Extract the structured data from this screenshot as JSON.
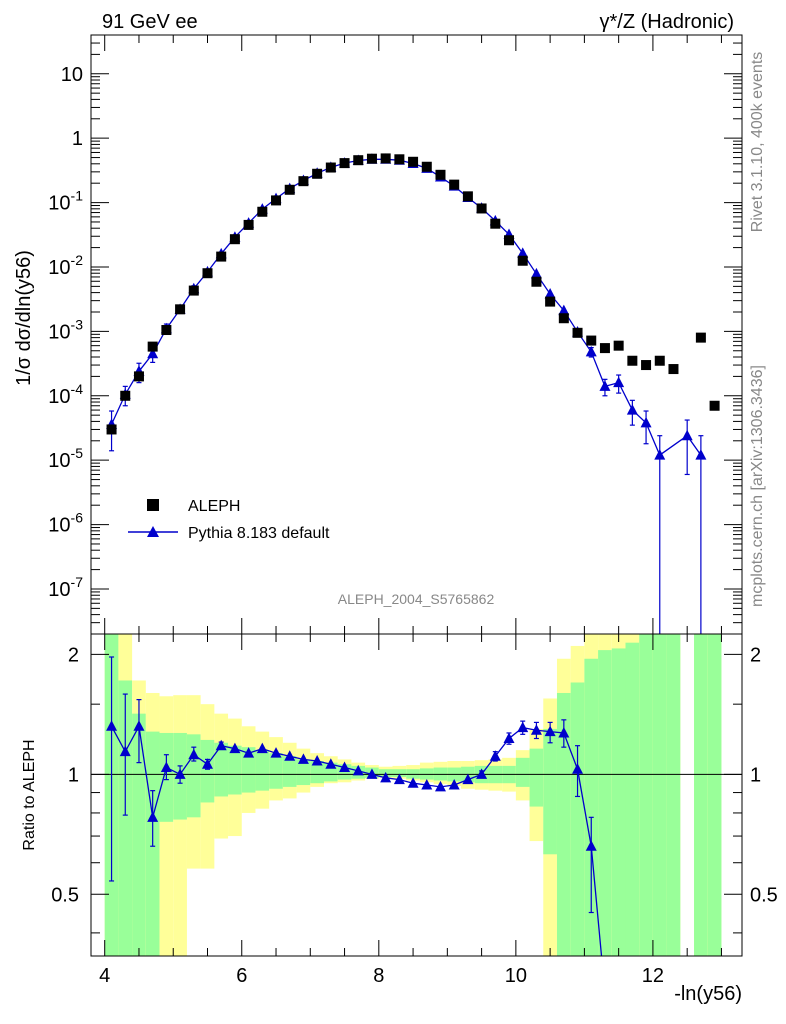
{
  "header": {
    "left": "91 GeV ee",
    "right": "γ*/Z (Hadronic)"
  },
  "side": {
    "rivet": "Rivet 3.1.10,  400k events",
    "mcplots": "mcplots.cern.ch [arXiv:1306.3436]"
  },
  "analysis": "ALEPH_2004_S5765862",
  "colors": {
    "data": "#000000",
    "mc": "#0000cc",
    "band_inner": "#99ff99",
    "band_outer": "#ffff99"
  },
  "chart_data": [
    {
      "type": "scatter",
      "title": "",
      "xlabel": "-ln(y56)",
      "ylabel": "1/σ dσ/dln(y56)",
      "xlim": [
        3.8,
        13.3
      ],
      "ylim": [
        2e-08,
        40
      ],
      "yscale": "log",
      "ytick_labels": [
        "10",
        "1",
        "10^-1",
        "10^-2",
        "10^-3",
        "10^-4",
        "10^-5",
        "10^-6",
        "10^-7"
      ],
      "legend": {
        "position": "bottom-left",
        "entries": [
          "ALEPH",
          "Pythia 8.183 default"
        ]
      },
      "series": [
        {
          "name": "ALEPH",
          "marker": "square",
          "x": [
            4.1,
            4.3,
            4.5,
            4.7,
            4.9,
            5.1,
            5.3,
            5.5,
            5.7,
            5.9,
            6.1,
            6.3,
            6.5,
            6.7,
            6.9,
            7.1,
            7.3,
            7.5,
            7.7,
            7.9,
            8.1,
            8.3,
            8.5,
            8.7,
            8.9,
            9.1,
            9.3,
            9.5,
            9.7,
            9.9,
            10.1,
            10.3,
            10.5,
            10.7,
            10.9,
            11.1,
            11.3,
            11.5,
            11.7,
            11.9,
            12.1,
            12.3,
            12.7,
            12.9
          ],
          "y": [
            3e-05,
            0.0001,
            0.0002,
            0.00058,
            0.00105,
            0.0022,
            0.0043,
            0.008,
            0.0145,
            0.027,
            0.045,
            0.072,
            0.108,
            0.158,
            0.215,
            0.28,
            0.35,
            0.41,
            0.455,
            0.48,
            0.485,
            0.47,
            0.43,
            0.36,
            0.27,
            0.19,
            0.125,
            0.081,
            0.047,
            0.026,
            0.0125,
            0.0059,
            0.0029,
            0.0016,
            0.00095,
            0.00072,
            0.00055,
            0.0006,
            0.00035,
            0.0003,
            0.00035,
            0.00026,
            0.0008,
            7e-05
          ]
        },
        {
          "name": "Pythia 8.183 default",
          "marker": "triangle",
          "x": [
            4.1,
            4.3,
            4.5,
            4.7,
            4.9,
            5.1,
            5.3,
            5.5,
            5.7,
            5.9,
            6.1,
            6.3,
            6.5,
            6.7,
            6.9,
            7.1,
            7.3,
            7.5,
            7.7,
            7.9,
            8.1,
            8.3,
            8.5,
            8.7,
            8.9,
            9.1,
            9.3,
            9.5,
            9.7,
            9.9,
            10.1,
            10.3,
            10.5,
            10.7,
            10.9,
            11.1,
            11.3,
            11.5,
            11.7,
            11.9,
            12.1,
            12.5,
            12.7
          ],
          "y": [
            3.6e-05,
            0.000105,
            0.00024,
            0.00045,
            0.0011,
            0.0022,
            0.0046,
            0.0084,
            0.016,
            0.029,
            0.048,
            0.079,
            0.115,
            0.165,
            0.22,
            0.285,
            0.352,
            0.41,
            0.45,
            0.47,
            0.47,
            0.455,
            0.405,
            0.34,
            0.25,
            0.18,
            0.12,
            0.082,
            0.052,
            0.032,
            0.0163,
            0.0078,
            0.0038,
            0.0021,
            0.00098,
            0.00048,
            0.00014,
            0.00016,
            6e-05,
            3.8e-05,
            1.2e-05,
            2.4e-05,
            1.2e-05
          ],
          "err": [
            2.2e-05,
            3.5e-05,
            8e-05,
            0.00012,
            0.0002,
            0.0003,
            0.0005,
            0.0008,
            0.001,
            0.0015,
            0.002,
            0.003,
            0.004,
            0.005,
            0.006,
            0.007,
            0.008,
            0.009,
            0.009,
            0.009,
            0.009,
            0.009,
            0.008,
            0.007,
            0.006,
            0.005,
            0.004,
            0.003,
            0.002,
            0.0015,
            0.0008,
            0.0005,
            0.0003,
            0.0002,
            0.00012,
            8e-05,
            4e-05,
            5e-05,
            2.5e-05,
            2e-05,
            1.2e-05,
            1.8e-05,
            1.2e-05
          ]
        }
      ]
    },
    {
      "type": "line",
      "title": "",
      "xlabel": "-ln(y56)",
      "ylabel": "Ratio to ALEPH",
      "xlim": [
        3.8,
        13.3
      ],
      "ylim": [
        0.35,
        2.25
      ],
      "x_ticks": [
        4,
        6,
        8,
        10,
        12
      ],
      "y_ticks": [
        0.5,
        1,
        2
      ],
      "bands": {
        "edges": [
          4.0,
          4.2,
          4.4,
          4.6,
          4.8,
          5.0,
          5.2,
          5.4,
          5.6,
          5.8,
          6.0,
          6.2,
          6.4,
          6.6,
          6.8,
          7.0,
          7.2,
          7.4,
          7.6,
          7.8,
          8.0,
          8.2,
          8.4,
          8.6,
          8.8,
          9.0,
          9.2,
          9.4,
          9.6,
          9.8,
          10.0,
          10.2,
          10.4,
          10.6,
          10.8,
          11.0,
          11.2,
          11.4,
          11.6,
          11.8,
          12.0,
          12.2,
          12.4,
          12.6,
          12.8,
          13.0
        ],
        "inner_lo": [
          0.35,
          0.35,
          0.35,
          0.35,
          0.76,
          0.77,
          0.78,
          0.85,
          0.88,
          0.89,
          0.9,
          0.91,
          0.92,
          0.93,
          0.94,
          0.95,
          0.96,
          0.97,
          0.975,
          0.98,
          0.985,
          0.985,
          0.975,
          0.97,
          0.965,
          0.96,
          0.955,
          0.95,
          0.95,
          0.95,
          0.93,
          0.83,
          0.63,
          0.35,
          0.35,
          0.35,
          0.35,
          0.35,
          0.35,
          0.35,
          0.35,
          0.35,
          null,
          0.35,
          0.35
        ],
        "inner_hi": [
          2.25,
          1.72,
          1.42,
          1.28,
          1.27,
          1.27,
          1.26,
          1.22,
          1.2,
          1.18,
          1.17,
          1.15,
          1.13,
          1.11,
          1.09,
          1.08,
          1.07,
          1.06,
          1.05,
          1.04,
          1.03,
          1.03,
          1.03,
          1.035,
          1.04,
          1.04,
          1.045,
          1.05,
          1.05,
          1.05,
          1.1,
          1.16,
          1.3,
          1.6,
          1.7,
          1.95,
          2.05,
          2.07,
          2.14,
          2.25,
          2.25,
          2.25,
          null,
          2.25,
          2.25
        ],
        "outer_lo": [
          0.35,
          0.35,
          0.35,
          0.35,
          0.35,
          0.35,
          0.58,
          0.58,
          0.69,
          0.7,
          0.8,
          0.82,
          0.86,
          0.87,
          0.9,
          0.93,
          0.95,
          0.955,
          0.965,
          0.975,
          0.98,
          0.975,
          0.965,
          0.955,
          0.945,
          0.935,
          0.92,
          0.915,
          0.91,
          0.905,
          0.86,
          0.68,
          0.35,
          0.35,
          0.35,
          0.35,
          0.35,
          0.35,
          0.35,
          0.35,
          0.35,
          0.35,
          null,
          0.35,
          0.35
        ],
        "outer_hi": [
          2.25,
          2.25,
          1.72,
          1.6,
          1.57,
          1.58,
          1.58,
          1.5,
          1.42,
          1.38,
          1.32,
          1.28,
          1.24,
          1.2,
          1.16,
          1.13,
          1.11,
          1.09,
          1.07,
          1.055,
          1.045,
          1.05,
          1.055,
          1.07,
          1.075,
          1.08,
          1.08,
          1.085,
          1.09,
          1.1,
          1.15,
          1.3,
          1.55,
          1.95,
          2.1,
          2.25,
          2.25,
          2.25,
          2.25,
          2.25,
          2.25,
          2.25,
          null,
          2.25,
          2.25
        ]
      },
      "series": [
        {
          "name": "Pythia 8.183 default / ALEPH",
          "x": [
            4.1,
            4.3,
            4.5,
            4.7,
            4.9,
            5.1,
            5.3,
            5.5,
            5.7,
            5.9,
            6.1,
            6.3,
            6.5,
            6.7,
            6.9,
            7.1,
            7.3,
            7.5,
            7.7,
            7.9,
            8.1,
            8.3,
            8.5,
            8.7,
            8.9,
            9.1,
            9.3,
            9.5,
            9.7,
            9.9,
            10.1,
            10.3,
            10.5,
            10.7,
            10.9,
            11.1,
            11.25
          ],
          "y": [
            1.32,
            1.14,
            1.32,
            0.78,
            1.04,
            1.0,
            1.12,
            1.06,
            1.18,
            1.16,
            1.13,
            1.16,
            1.13,
            1.11,
            1.09,
            1.08,
            1.06,
            1.04,
            1.02,
            1.0,
            0.98,
            0.97,
            0.95,
            0.94,
            0.93,
            0.94,
            0.97,
            1.0,
            1.11,
            1.23,
            1.31,
            1.29,
            1.28,
            1.27,
            1.03,
            0.66,
            0.35
          ],
          "err_lo": [
            0.78,
            0.35,
            0.25,
            0.12,
            0.07,
            0.05,
            0.04,
            0.03,
            0.025,
            0.02,
            0.015,
            0.015,
            0.01,
            0.01,
            0.01,
            0.01,
            0.01,
            0.01,
            0.01,
            0.01,
            0.01,
            0.01,
            0.01,
            0.01,
            0.01,
            0.015,
            0.015,
            0.02,
            0.03,
            0.04,
            0.05,
            0.06,
            0.08,
            0.1,
            0.15,
            0.21,
            0.0
          ],
          "err_hi": [
            0.65,
            0.45,
            0.22,
            0.13,
            0.08,
            0.05,
            0.05,
            0.03,
            0.025,
            0.02,
            0.015,
            0.015,
            0.01,
            0.01,
            0.01,
            0.01,
            0.01,
            0.01,
            0.01,
            0.01,
            0.01,
            0.01,
            0.01,
            0.01,
            0.01,
            0.015,
            0.015,
            0.02,
            0.03,
            0.04,
            0.05,
            0.06,
            0.07,
            0.1,
            0.15,
            0.12,
            0.0
          ]
        }
      ]
    }
  ]
}
